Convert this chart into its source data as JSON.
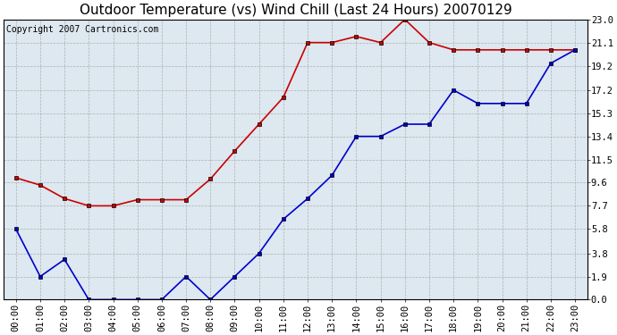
{
  "title": "Outdoor Temperature (vs) Wind Chill (Last 24 Hours) 20070129",
  "copyright_text": "Copyright 2007 Cartronics.com",
  "hours": [
    0,
    1,
    2,
    3,
    4,
    5,
    6,
    7,
    8,
    9,
    10,
    11,
    12,
    13,
    14,
    15,
    16,
    17,
    18,
    19,
    20,
    21,
    22,
    23
  ],
  "hour_labels": [
    "00:00",
    "01:00",
    "02:00",
    "03:00",
    "04:00",
    "05:00",
    "06:00",
    "07:00",
    "08:00",
    "09:00",
    "10:00",
    "11:00",
    "12:00",
    "13:00",
    "14:00",
    "15:00",
    "16:00",
    "17:00",
    "18:00",
    "19:00",
    "20:00",
    "21:00",
    "22:00",
    "23:00"
  ],
  "temp_red": [
    10.0,
    9.4,
    8.3,
    7.7,
    7.7,
    8.2,
    8.2,
    8.2,
    9.9,
    12.2,
    14.4,
    16.6,
    21.1,
    21.1,
    21.6,
    21.1,
    23.0,
    21.1,
    20.5,
    20.5,
    20.5,
    20.5,
    20.5,
    20.5
  ],
  "wind_blue": [
    5.8,
    1.9,
    3.3,
    0.0,
    0.0,
    0.0,
    0.0,
    1.9,
    0.0,
    1.9,
    3.8,
    6.6,
    8.3,
    10.2,
    13.4,
    13.4,
    14.4,
    14.4,
    17.2,
    16.1,
    16.1,
    16.1,
    19.4,
    20.5
  ],
  "yticks": [
    0.0,
    1.9,
    3.8,
    5.8,
    7.7,
    9.6,
    11.5,
    13.4,
    15.3,
    17.2,
    19.2,
    21.1,
    23.0
  ],
  "ylim": [
    0.0,
    23.0
  ],
  "bg_color": "#ffffff",
  "plot_bg_color": "#dde8f0",
  "red_color": "#cc0000",
  "blue_color": "#0000cc",
  "title_fontsize": 11,
  "copyright_fontsize": 7,
  "tick_fontsize": 7.5
}
